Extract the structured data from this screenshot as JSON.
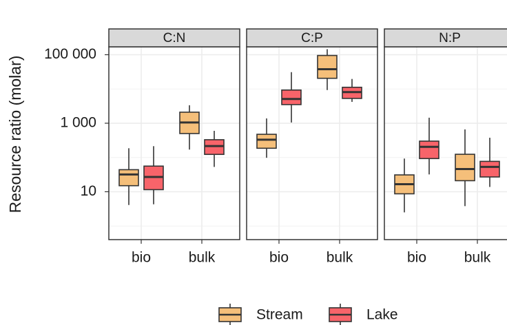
{
  "chart_data": {
    "type": "box",
    "ylabel": "Resource ratio (molar)",
    "log_y": true,
    "grid": true,
    "legend": "bottom",
    "ylim": [
      0.4,
      170000
    ],
    "yticks": [
      10,
      {
        "value": 1000,
        "label": "1 000"
      },
      {
        "value": 100000,
        "label": "100 000"
      }
    ],
    "facets": [
      "C:N",
      "C:P",
      "N:P"
    ],
    "categories": [
      "bio",
      "bulk"
    ],
    "series": [
      {
        "name": "Stream",
        "color": "#f5bf7a",
        "values": [
          [
            [
              4.1,
              15,
              32,
              44,
              186
            ],
            [
              170,
              500,
              1050,
              2100,
              3350
            ]
          ],
          [
            [
              98,
              186,
              330,
              475,
              1380
            ],
            [
              9300,
              20500,
              37700,
              95000,
              145000
            ]
          ],
          [
            [
              2.5,
              8.7,
              16.6,
              31,
              93
            ],
            [
              3.8,
              21,
              46,
              124,
              660
            ]
          ]
        ]
      },
      {
        "name": "Lake",
        "color": "#f8646a",
        "values": [
          [
            [
              4.3,
              11.5,
              27,
              56,
              214
            ],
            [
              53,
              123,
              215,
              330,
              600
            ]
          ],
          [
            [
              1050,
              3500,
              5100,
              9300,
              31000
            ],
            [
              4200,
              5300,
              8100,
              11200,
              19600
            ]
          ],
          [
            [
              32,
              93,
              205,
              300,
              1450
            ],
            [
              13.8,
              27,
              53,
              77,
              377
            ]
          ]
        ]
      }
    ]
  }
}
